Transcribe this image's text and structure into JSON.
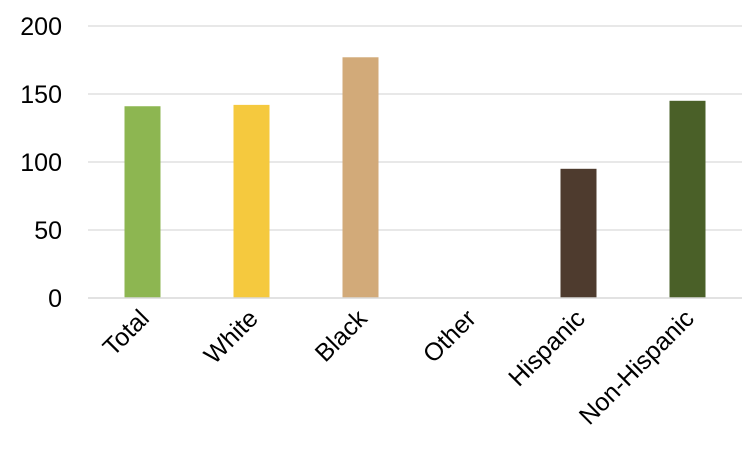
{
  "chart_data": {
    "type": "bar",
    "categories": [
      "Total",
      "White",
      "Black",
      "Other",
      "Hispanic",
      "Non-Hispanic"
    ],
    "values": [
      141,
      142,
      177,
      0,
      95,
      145
    ],
    "colors": [
      "#8db651",
      "#f5c93e",
      "#d2aa79",
      "#cccccc",
      "#4e3b2e",
      "#4a6028"
    ],
    "ylim": [
      0,
      200
    ],
    "yticks": [
      0,
      50,
      100,
      150,
      200
    ],
    "grid": true,
    "title": "",
    "xlabel": "",
    "ylabel": ""
  }
}
